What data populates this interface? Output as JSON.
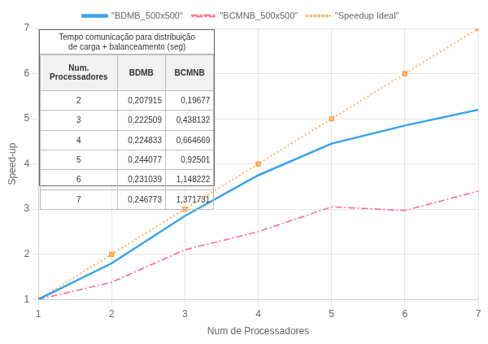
{
  "chart_data": {
    "type": "line",
    "xlabel": "Num de Processadores",
    "ylabel": "Speed-up",
    "x": [
      1,
      2,
      3,
      4,
      5,
      6,
      7
    ],
    "series": [
      {
        "name": "\"BDMB_500x500\"",
        "values": [
          1.0,
          1.8,
          2.85,
          3.75,
          4.45,
          4.85,
          5.2
        ],
        "line_style": "solid"
      },
      {
        "name": "\"BCMNB_500x500\"",
        "values": [
          1.0,
          1.38,
          2.1,
          2.5,
          3.05,
          2.97,
          3.4
        ],
        "line_style": "dashdot"
      },
      {
        "name": "\"Speedup Ideal\"",
        "values": [
          1,
          2,
          3,
          4,
          5,
          6,
          7
        ],
        "line_style": "dotted",
        "marker": "square"
      }
    ],
    "xlim": [
      1,
      7
    ],
    "ylim": [
      1,
      7
    ],
    "xticks": [
      1,
      2,
      3,
      4,
      5,
      6,
      7
    ],
    "yticks": [
      1,
      2,
      3,
      4,
      5,
      6,
      7
    ],
    "grid": true,
    "legend": "top",
    "table": {
      "title": "Tempo comunicação para distribuição\nde carga + balanceamento (seg)",
      "columns": [
        "Num.\nProcessadores",
        "BDMB",
        "BCMNB"
      ],
      "rows": [
        [
          "2",
          "0,207915",
          "0,19677"
        ],
        [
          "3",
          "0,222509",
          "0,438132"
        ],
        [
          "4",
          "0,224833",
          "0,664669"
        ],
        [
          "5",
          "0,244077",
          "0,92501"
        ],
        [
          "6",
          "0,231039",
          "1,148222"
        ],
        [
          "7",
          "0,246773",
          "1,371731"
        ]
      ]
    }
  }
}
